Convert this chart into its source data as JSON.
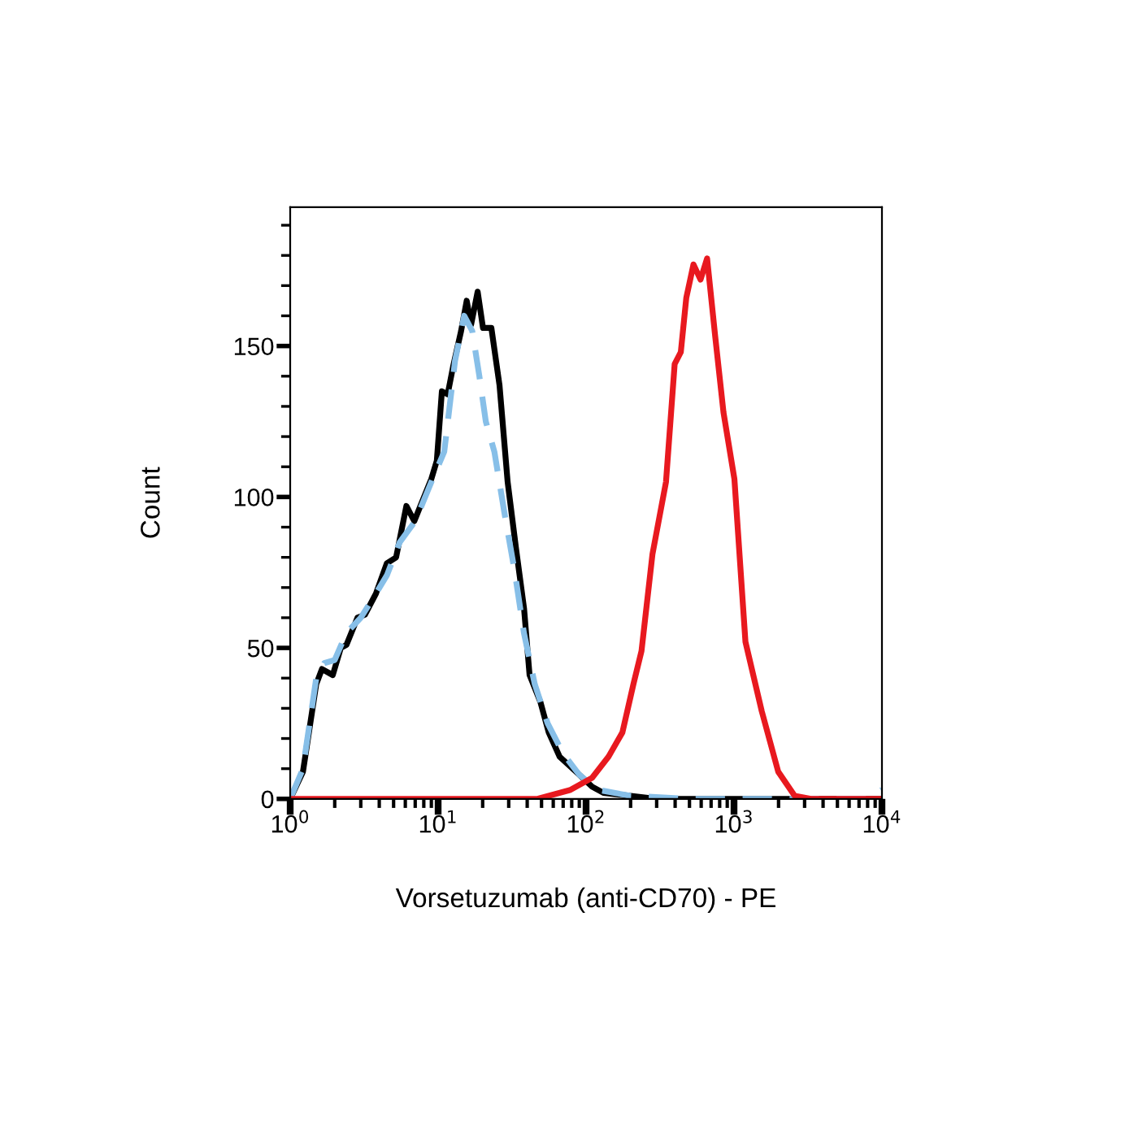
{
  "chart_data": {
    "type": "line",
    "xlabel": "Vorsetuzumab (anti-CD70) - PE",
    "ylabel": "Count",
    "log": "x",
    "grid": false,
    "legend": false,
    "marker": "none",
    "xlim": [
      1,
      10000
    ],
    "ylim": [
      0,
      196
    ],
    "xticks": [
      {
        "value": 1,
        "label": "10$^{0}$"
      },
      {
        "value": 2,
        "label": null
      },
      {
        "value": 3,
        "label": null
      },
      {
        "value": 4,
        "label": null
      },
      {
        "value": 5,
        "label": null
      },
      {
        "value": 6,
        "label": null
      },
      {
        "value": 7,
        "label": null
      },
      {
        "value": 8,
        "label": null
      },
      {
        "value": 9,
        "label": null
      },
      {
        "value": 10,
        "label": "10$^{1}$"
      },
      {
        "value": 20,
        "label": null
      },
      {
        "value": 30,
        "label": null
      },
      {
        "value": 40,
        "label": null
      },
      {
        "value": 50,
        "label": null
      },
      {
        "value": 60,
        "label": null
      },
      {
        "value": 70,
        "label": null
      },
      {
        "value": 80,
        "label": null
      },
      {
        "value": 90,
        "label": null
      },
      {
        "value": 100,
        "label": "10$^{2}$"
      },
      {
        "value": 200,
        "label": null
      },
      {
        "value": 300,
        "label": null
      },
      {
        "value": 400,
        "label": null
      },
      {
        "value": 500,
        "label": null
      },
      {
        "value": 600,
        "label": null
      },
      {
        "value": 700,
        "label": null
      },
      {
        "value": 800,
        "label": null
      },
      {
        "value": 900,
        "label": null
      },
      {
        "value": 1000,
        "label": "10$^{3}$"
      },
      {
        "value": 2000,
        "label": null
      },
      {
        "value": 3000,
        "label": null
      },
      {
        "value": 4000,
        "label": null
      },
      {
        "value": 5000,
        "label": null
      },
      {
        "value": 6000,
        "label": null
      },
      {
        "value": 7000,
        "label": null
      },
      {
        "value": 8000,
        "label": null
      },
      {
        "value": 9000,
        "label": null
      },
      {
        "value": 10000,
        "label": "10$^{4}$"
      }
    ],
    "yticks": [
      0,
      {
        "value": 10,
        "label": null
      },
      {
        "value": 20,
        "label": null
      },
      {
        "value": 30,
        "label": null
      },
      {
        "value": 40,
        "label": null
      },
      50,
      {
        "value": 60,
        "label": null
      },
      {
        "value": 70,
        "label": null
      },
      {
        "value": 80,
        "label": null
      },
      {
        "value": 90,
        "label": null
      },
      100,
      {
        "value": 110,
        "label": null
      },
      {
        "value": 120,
        "label": null
      },
      {
        "value": 130,
        "label": null
      },
      {
        "value": 140,
        "label": null
      },
      150,
      {
        "value": 160,
        "label": null
      },
      {
        "value": 170,
        "label": null
      },
      {
        "value": 180,
        "label": null
      },
      {
        "value": 190,
        "label": null
      }
    ],
    "series": [
      {
        "color": "#000000",
        "line_style": "solid",
        "x": [
          1,
          1.22,
          1.5,
          1.64,
          1.94,
          2.2,
          2.4,
          2.85,
          3.2,
          3.8,
          4.5,
          5.2,
          6.1,
          6.9,
          9.0,
          9.8,
          10.6,
          11.6,
          12.6,
          14.3,
          15.6,
          16.7,
          18.5,
          20.1,
          22.9,
          26,
          29.5,
          33.6,
          38.1,
          41.5,
          49.2,
          55.9,
          66.2,
          85.5,
          110,
          131,
          200,
          300,
          10000
        ],
        "values": [
          0,
          9,
          38,
          43,
          41,
          50,
          51,
          60,
          61,
          68,
          78,
          80,
          97,
          92,
          106,
          112,
          135,
          134,
          143,
          155,
          165,
          157,
          168,
          156,
          156,
          137,
          105,
          83,
          63,
          41,
          32,
          22,
          14,
          9,
          4,
          2,
          1,
          0,
          0
        ]
      },
      {
        "color": "#87bfe8",
        "line_style": "dashed",
        "x": [
          1,
          1.22,
          1.5,
          1.7,
          2.0,
          2.4,
          3,
          3.8,
          4.5,
          5.5,
          7,
          9,
          11,
          13,
          15,
          17,
          19,
          21,
          24,
          28,
          33,
          38,
          45,
          55,
          70,
          90,
          120,
          200,
          500,
          2000,
          8000,
          10000
        ],
        "values": [
          0,
          10,
          40,
          45,
          46,
          55,
          60,
          68,
          74,
          85,
          92,
          105,
          115,
          145,
          160,
          155,
          140,
          125,
          115,
          95,
          75,
          55,
          38,
          25,
          15,
          8,
          3,
          1,
          0,
          0,
          0,
          3
        ]
      },
      {
        "color": "#e8191f",
        "line_style": "solid",
        "x": [
          1,
          47,
          78.5,
          110,
          142,
          176,
          209,
          237,
          281,
          347,
          397,
          437,
          476,
          532,
          594,
          658,
          747,
          849,
          1006,
          1195,
          1541,
          1990,
          2570,
          3311,
          10000
        ],
        "values": [
          0,
          0,
          3,
          7,
          14,
          22,
          38,
          49,
          81,
          105,
          144,
          148,
          166,
          177,
          172,
          179,
          153,
          128,
          106,
          52,
          29,
          9,
          1,
          0,
          0
        ]
      }
    ]
  }
}
